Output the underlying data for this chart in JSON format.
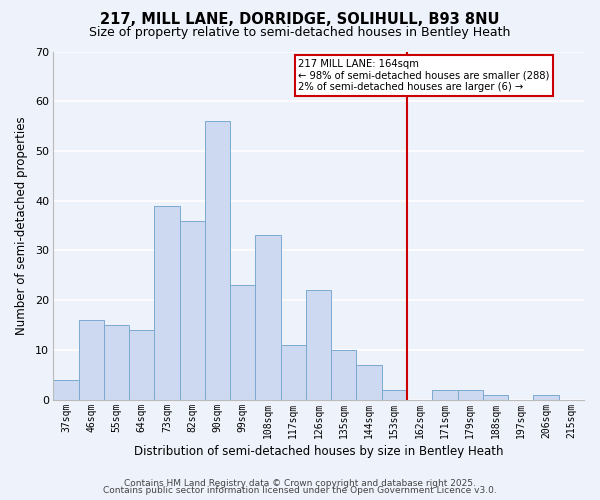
{
  "title": "217, MILL LANE, DORRIDGE, SOLIHULL, B93 8NU",
  "subtitle": "Size of property relative to semi-detached houses in Bentley Heath",
  "xlabel": "Distribution of semi-detached houses by size in Bentley Heath",
  "ylabel": "Number of semi-detached properties",
  "bar_labels": [
    "37sqm",
    "46sqm",
    "55sqm",
    "64sqm",
    "73sqm",
    "82sqm",
    "90sqm",
    "99sqm",
    "108sqm",
    "117sqm",
    "126sqm",
    "135sqm",
    "144sqm",
    "153sqm",
    "162sqm",
    "171sqm",
    "179sqm",
    "188sqm",
    "197sqm",
    "206sqm",
    "215sqm"
  ],
  "bar_heights": [
    4,
    16,
    15,
    14,
    39,
    36,
    56,
    23,
    33,
    11,
    22,
    10,
    7,
    2,
    0,
    2,
    2,
    1,
    0,
    1,
    0
  ],
  "bar_color": "#ccd9f0",
  "bar_edge_color": "#7aaad0",
  "background_color": "#eef2fa",
  "grid_color": "#ffffff",
  "ylim": [
    0,
    70
  ],
  "vline_x_idx": 14,
  "vline_color": "#cc0000",
  "annotation_text": "217 MILL LANE: 164sqm\n← 98% of semi-detached houses are smaller (288)\n2% of semi-detached houses are larger (6) →",
  "annotation_box_color": "#ffffff",
  "annotation_box_edge": "#cc0000",
  "footer1": "Contains HM Land Registry data © Crown copyright and database right 2025.",
  "footer2": "Contains public sector information licensed under the Open Government Licence v3.0.",
  "title_fontsize": 10.5,
  "subtitle_fontsize": 9,
  "tick_fontsize": 7,
  "label_fontsize": 8.5,
  "footer_fontsize": 6.5
}
